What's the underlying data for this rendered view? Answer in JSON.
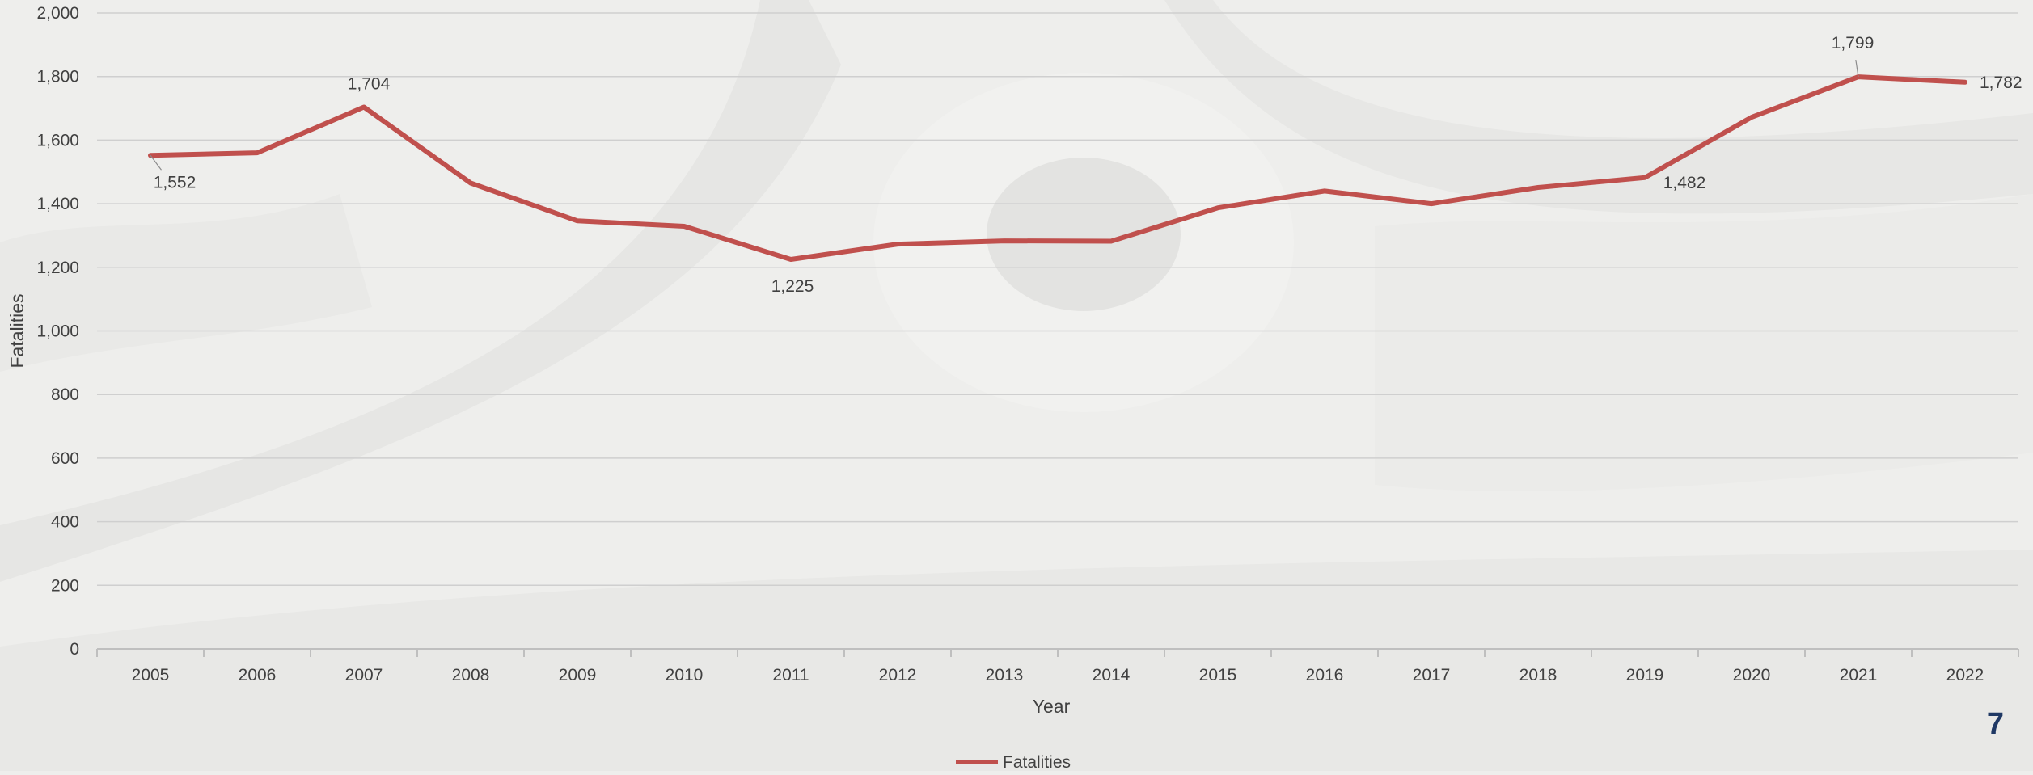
{
  "page": {
    "number": "7"
  },
  "colors": {
    "series": "#c0504d",
    "grid": "#cfcfcf",
    "axis": "#bfbfbf",
    "text": "#404040",
    "page_number": "#1f3864",
    "background": "#eeeeec"
  },
  "chart_data": {
    "type": "line",
    "xlabel": "Year",
    "ylabel": "Fatalities",
    "ylim": [
      0,
      2000
    ],
    "y_ticks": [
      "0",
      "200",
      "400",
      "600",
      "800",
      "1,000",
      "1,200",
      "1,400",
      "1,600",
      "1,800",
      "2,000"
    ],
    "y_tick_values": [
      0,
      200,
      400,
      600,
      800,
      1000,
      1200,
      1400,
      1600,
      1800,
      2000
    ],
    "categories": [
      "2005",
      "2006",
      "2007",
      "2008",
      "2009",
      "2010",
      "2011",
      "2012",
      "2013",
      "2014",
      "2015",
      "2016",
      "2017",
      "2018",
      "2019",
      "2020",
      "2021",
      "2022"
    ],
    "series": [
      {
        "name": "Fatalities",
        "color": "#c0504d",
        "values": [
          1552,
          1560,
          1704,
          1465,
          1346,
          1329,
          1225,
          1273,
          1283,
          1282,
          1387,
          1440,
          1400,
          1451,
          1482,
          1672,
          1799,
          1782
        ]
      }
    ],
    "data_labels": [
      {
        "category": "2005",
        "text": "1,552"
      },
      {
        "category": "2007",
        "text": "1,704"
      },
      {
        "category": "2011",
        "text": "1,225"
      },
      {
        "category": "2019",
        "text": "1,482"
      },
      {
        "category": "2021",
        "text": "1,799"
      },
      {
        "category": "2022",
        "text": "1,782"
      }
    ],
    "grid": true,
    "legend": "bottom"
  }
}
